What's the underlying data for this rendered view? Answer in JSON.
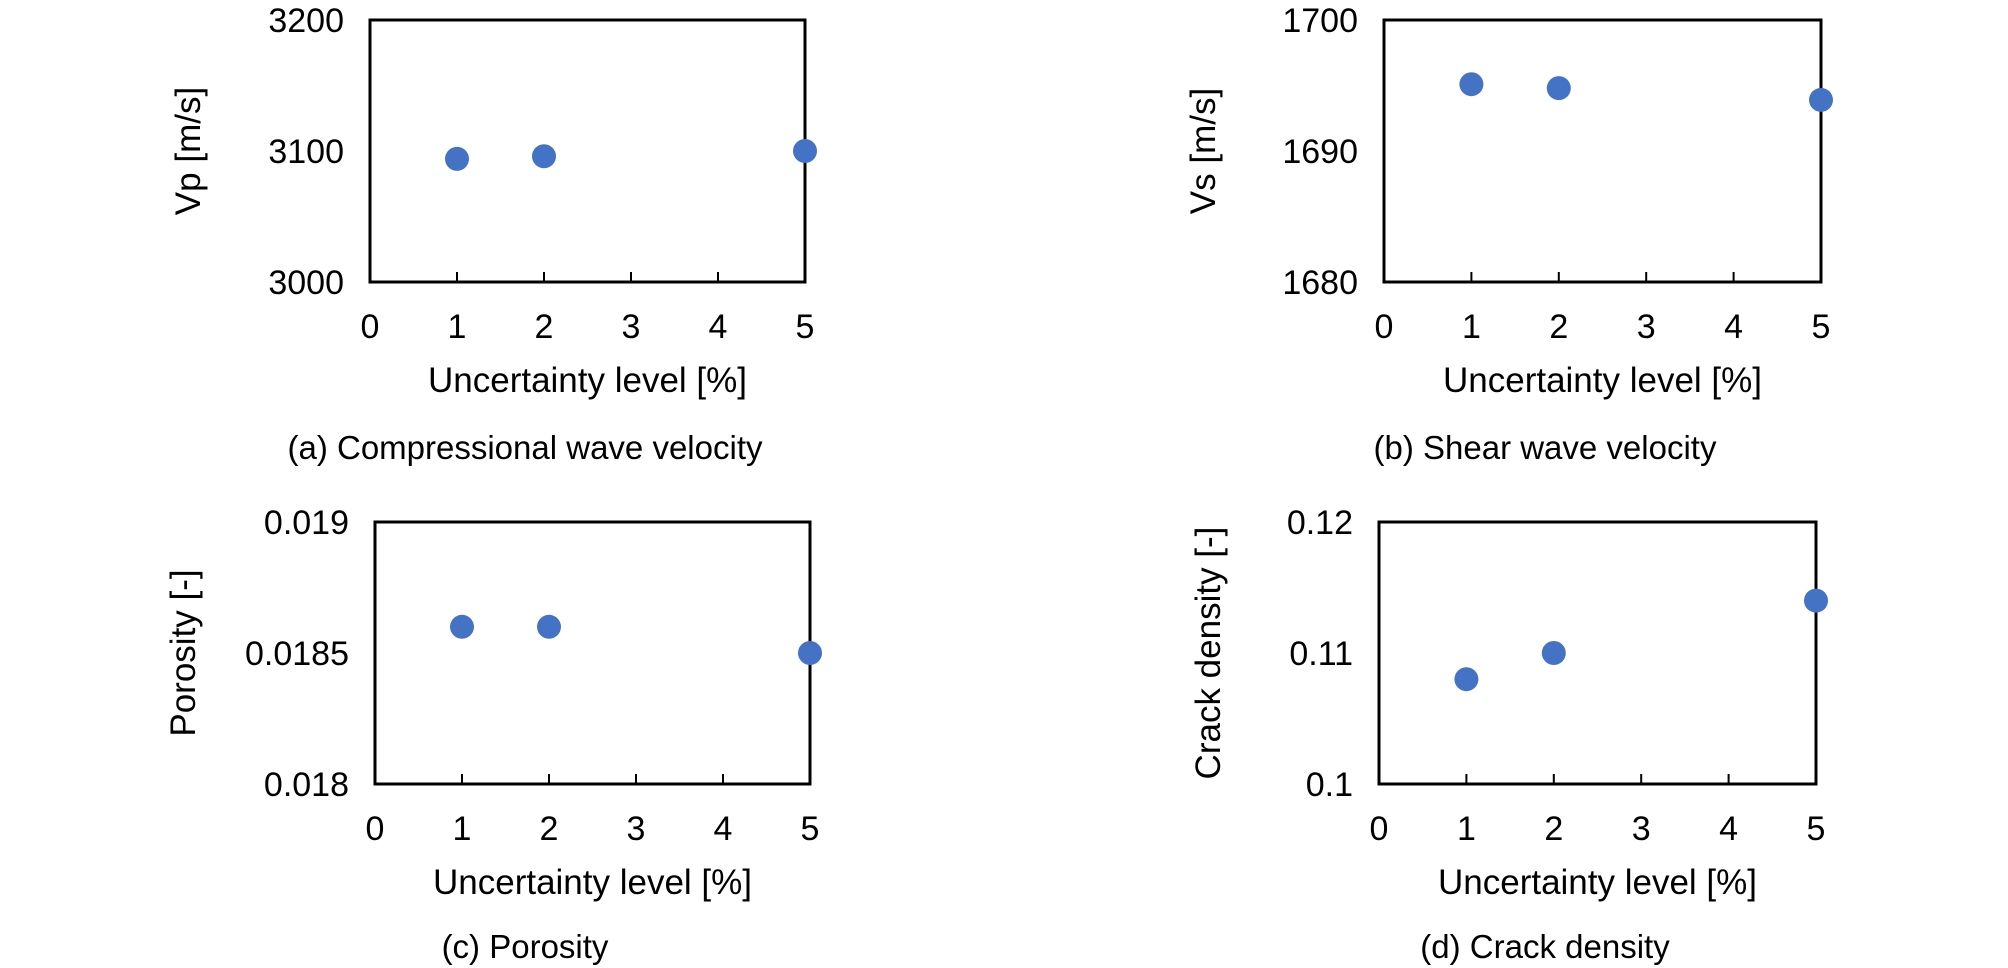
{
  "chart_data": [
    {
      "id": "a",
      "type": "scatter",
      "caption": "(a) Compressional wave velocity",
      "xlabel": "Uncertainty level [%]",
      "ylabel": "Vp [m/s]",
      "x_tick_labels": [
        "0",
        "1",
        "2",
        "3",
        "4",
        "5"
      ],
      "y_tick_labels": [
        "3000",
        "3100",
        "3200"
      ],
      "xlim": [
        0,
        5
      ],
      "ylim": [
        3000,
        3200
      ],
      "y_ticks": [
        3000,
        3100,
        3200
      ],
      "marker_color": "#4472C4",
      "points": [
        {
          "x": 1,
          "y": 3094
        },
        {
          "x": 2,
          "y": 3096
        },
        {
          "x": 5,
          "y": 3100
        }
      ]
    },
    {
      "id": "b",
      "type": "scatter",
      "caption": "(b) Shear wave velocity",
      "xlabel": "Uncertainty level [%]",
      "ylabel": "Vs [m/s]",
      "x_tick_labels": [
        "0",
        "1",
        "2",
        "3",
        "4",
        "5"
      ],
      "y_tick_labels": [
        "1680",
        "1690",
        "1700"
      ],
      "xlim": [
        0,
        5
      ],
      "ylim": [
        1680,
        1700
      ],
      "y_ticks": [
        1680,
        1690,
        1700
      ],
      "marker_color": "#4472C4",
      "points": [
        {
          "x": 1,
          "y": 1695.1
        },
        {
          "x": 2,
          "y": 1694.8
        },
        {
          "x": 5,
          "y": 1693.9
        }
      ]
    },
    {
      "id": "c",
      "type": "scatter",
      "caption": "(c) Porosity",
      "xlabel": "Uncertainty level [%]",
      "ylabel": "Porosity [-]",
      "x_tick_labels": [
        "0",
        "1",
        "2",
        "3",
        "4",
        "5"
      ],
      "y_tick_labels": [
        "0.018",
        "0.0185",
        "0.019"
      ],
      "xlim": [
        0,
        5
      ],
      "ylim": [
        0.018,
        0.019
      ],
      "y_ticks": [
        0.018,
        0.0185,
        0.019
      ],
      "marker_color": "#4472C4",
      "points": [
        {
          "x": 1,
          "y": 0.0186
        },
        {
          "x": 2,
          "y": 0.0186
        },
        {
          "x": 5,
          "y": 0.0185
        }
      ]
    },
    {
      "id": "d",
      "type": "scatter",
      "caption": "(d) Crack density",
      "xlabel": "Uncertainty level [%]",
      "ylabel": "Crack density [-]",
      "x_tick_labels": [
        "0",
        "1",
        "2",
        "3",
        "4",
        "5"
      ],
      "y_tick_labels": [
        "0.1",
        "0.11",
        "0.12"
      ],
      "xlim": [
        0,
        5
      ],
      "ylim": [
        0.1,
        0.12
      ],
      "y_ticks": [
        0.1,
        0.11,
        0.12
      ],
      "marker_color": "#4472C4",
      "points": [
        {
          "x": 1,
          "y": 0.108
        },
        {
          "x": 2,
          "y": 0.11
        },
        {
          "x": 5,
          "y": 0.114
        }
      ]
    }
  ]
}
